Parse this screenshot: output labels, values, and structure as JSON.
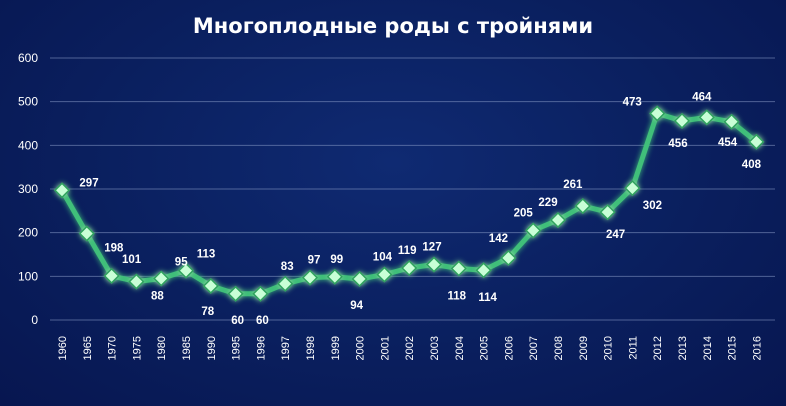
{
  "chart_data": {
    "type": "line",
    "title": "Многоплодные роды с тройнями",
    "xlabel": "",
    "ylabel": "",
    "ylim": [
      0,
      600
    ],
    "yticks": [
      0,
      100,
      200,
      300,
      400,
      500,
      600
    ],
    "grid": true,
    "legend": "none",
    "colors": {
      "line": "#3fbf7a",
      "marker": "#c8ffd6",
      "background": "#0a1f5e",
      "grid": "#8a9cc8"
    },
    "x": [
      "1960",
      "1965",
      "1970",
      "1975",
      "1980",
      "1985",
      "1990",
      "1995",
      "1996",
      "1997",
      "1998",
      "1999",
      "2000",
      "2001",
      "2002",
      "2003",
      "2004",
      "2005",
      "2006",
      "2007",
      "2008",
      "2009",
      "2010",
      "2011",
      "2012",
      "2013",
      "2014",
      "2015",
      "2016"
    ],
    "series": [
      {
        "name": "",
        "values": [
          297,
          198,
          101,
          88,
          95,
          113,
          78,
          60,
          60,
          83,
          97,
          99,
          94,
          104,
          119,
          127,
          118,
          114,
          142,
          205,
          229,
          261,
          247,
          302,
          473,
          456,
          464,
          454,
          408
        ]
      }
    ]
  }
}
